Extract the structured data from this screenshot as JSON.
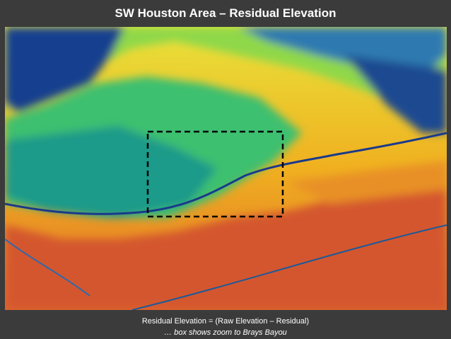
{
  "header": {
    "title": "SW Houston Area – Residual Elevation"
  },
  "caption": {
    "line1": "Residual Elevation = (Raw Elevation – Residual)",
    "line2": "… box shows zoom to Brays Bayou"
  }
}
